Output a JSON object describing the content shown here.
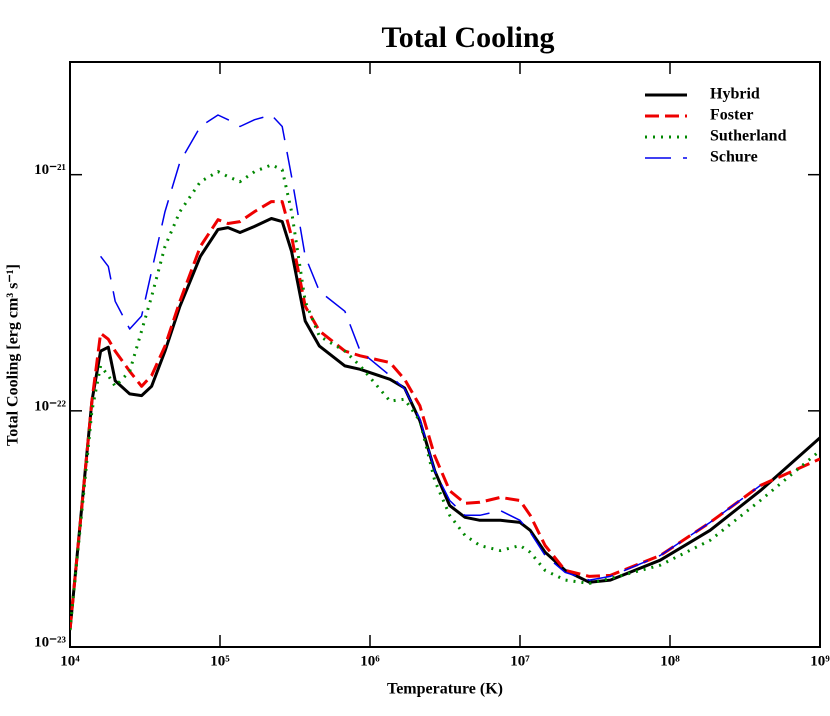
{
  "chart_data": {
    "type": "line",
    "title": "Total Cooling",
    "x_label": "Temperature (K)",
    "y_label": "Total Cooling [erg cm³ s⁻¹]",
    "x": [
      10000.0,
      14000.0,
      16000.0,
      18000.0,
      20000.0,
      25000.0,
      30000.0,
      35000.0,
      43000.0,
      54000.0,
      74000.0,
      97000.0,
      113000.0,
      136000.0,
      170000.0,
      220000.0,
      260000.0,
      300000.0,
      370000.0,
      460000.0,
      680000.0,
      860000.0,
      1360000.0,
      1700000.0,
      2150000.0,
      2700000.0,
      3400000.0,
      4300000.0,
      5400000.0,
      7400000.0,
      10000000.0,
      11700000.0,
      14700000.0,
      20000000.0,
      29000000.0,
      40000000.0,
      86000000.0,
      185000000.0,
      400000000.0,
      1000000000.0
    ],
    "series": [
      {
        "name": "Hybrid",
        "color": "#000000",
        "style": "solid",
        "values": [
          1.18e-23,
          1.1e-22,
          1.79e-22,
          1.86e-22,
          1.34e-22,
          1.18e-22,
          1.16e-22,
          1.27e-22,
          1.79e-22,
          2.77e-22,
          4.51e-22,
          5.86e-22,
          5.97e-22,
          5.69e-22,
          6.04e-22,
          6.52e-22,
          6.33e-22,
          4.73e-22,
          2.4e-22,
          1.88e-22,
          1.55e-22,
          1.5e-22,
          1.36e-22,
          1.25e-22,
          9.07e-23,
          5.58e-23,
          3.97e-23,
          3.54e-23,
          3.44e-23,
          3.44e-23,
          3.37e-23,
          3.12e-23,
          2.52e-23,
          2.11e-23,
          1.88e-23,
          1.92e-23,
          2.33e-23,
          3.12e-23,
          4.59e-23,
          7.69e-23
        ]
      },
      {
        "name": "Foster",
        "color": "#ee0000",
        "style": "dashed",
        "values": [
          1.18e-23,
          1.1e-22,
          2.13e-22,
          2.01e-22,
          1.79e-22,
          1.47e-22,
          1.27e-22,
          1.41e-22,
          1.88e-22,
          2.91e-22,
          4.97e-22,
          6.45e-22,
          6.21e-22,
          6.33e-22,
          6.98e-22,
          7.69e-22,
          7.69e-22,
          5.47e-22,
          2.77e-22,
          2.18e-22,
          1.79e-22,
          1.71e-22,
          1.6e-22,
          1.36e-22,
          1.05e-22,
          6.45e-23,
          4.59e-23,
          4.06e-23,
          4.1e-23,
          4.3e-23,
          4.17e-23,
          3.61e-23,
          2.69e-23,
          2.11e-23,
          1.99e-23,
          2.01e-23,
          2.44e-23,
          3.37e-23,
          4.83e-23,
          6.26e-23
        ]
      },
      {
        "name": "Sutherland",
        "color": "#008800",
        "style": "dotted",
        "values": [
          1.18e-23,
          1e-22,
          1.55e-22,
          1.41e-22,
          1.27e-22,
          1.47e-22,
          2.18e-22,
          3.05e-22,
          4.97e-22,
          6.98e-22,
          9.34e-22,
          1.03e-21,
          9.81e-22,
          9.34e-22,
          1.03e-21,
          1.1e-21,
          1.05e-21,
          6.98e-22,
          2.91e-22,
          2.07e-22,
          1.79e-22,
          1.55e-22,
          1.1e-22,
          1.12e-22,
          9.07e-23,
          5.07e-23,
          3.61e-23,
          2.97e-23,
          2.69e-23,
          2.56e-23,
          2.69e-23,
          2.52e-23,
          2.11e-23,
          1.92e-23,
          1.86e-23,
          1.95e-23,
          2.22e-23,
          2.83e-23,
          4.17e-23,
          6.78e-23
        ]
      },
      {
        "name": "Schure",
        "color": "#0000ee",
        "style": "long-dashed",
        "values": [
          null,
          null,
          4.51e-22,
          4.09e-22,
          2.91e-22,
          2.22e-22,
          2.52e-22,
          3.9e-22,
          6.98e-22,
          1.13e-21,
          1.6e-21,
          1.79e-21,
          1.71e-21,
          1.6e-21,
          1.71e-21,
          1.79e-21,
          1.6e-21,
          9.81e-22,
          4.51e-22,
          3.21e-22,
          2.64e-22,
          1.79e-22,
          1.41e-22,
          1.24e-22,
          9.25e-23,
          5.58e-23,
          4.17e-23,
          3.61e-23,
          3.61e-23,
          3.78e-23,
          3.44e-23,
          3.06e-23,
          2.44e-23,
          2.07e-23,
          1.92e-23,
          1.99e-23,
          2.44e-23,
          3.37e-23,
          4.83e-23,
          null
        ]
      }
    ],
    "xlim": [
      10000.0,
      1000000000.0
    ],
    "ylim": [
      1e-23,
      3e-21
    ],
    "xscale": "log",
    "yscale": "log",
    "xticks": [
      {
        "value": 10000.0,
        "label": "10⁴"
      },
      {
        "value": 100000.0,
        "label": "10⁵"
      },
      {
        "value": 1000000.0,
        "label": "10⁶"
      },
      {
        "value": 10000000.0,
        "label": "10⁷"
      },
      {
        "value": 100000000.0,
        "label": "10⁸"
      },
      {
        "value": 1000000000.0,
        "label": "10⁹"
      }
    ],
    "yticks": [
      {
        "value": 1e-23,
        "label": "10⁻²³"
      },
      {
        "value": 1e-22,
        "label": "10⁻²²"
      },
      {
        "value": 1e-21,
        "label": "10⁻²¹"
      }
    ],
    "legend": "upper right"
  }
}
